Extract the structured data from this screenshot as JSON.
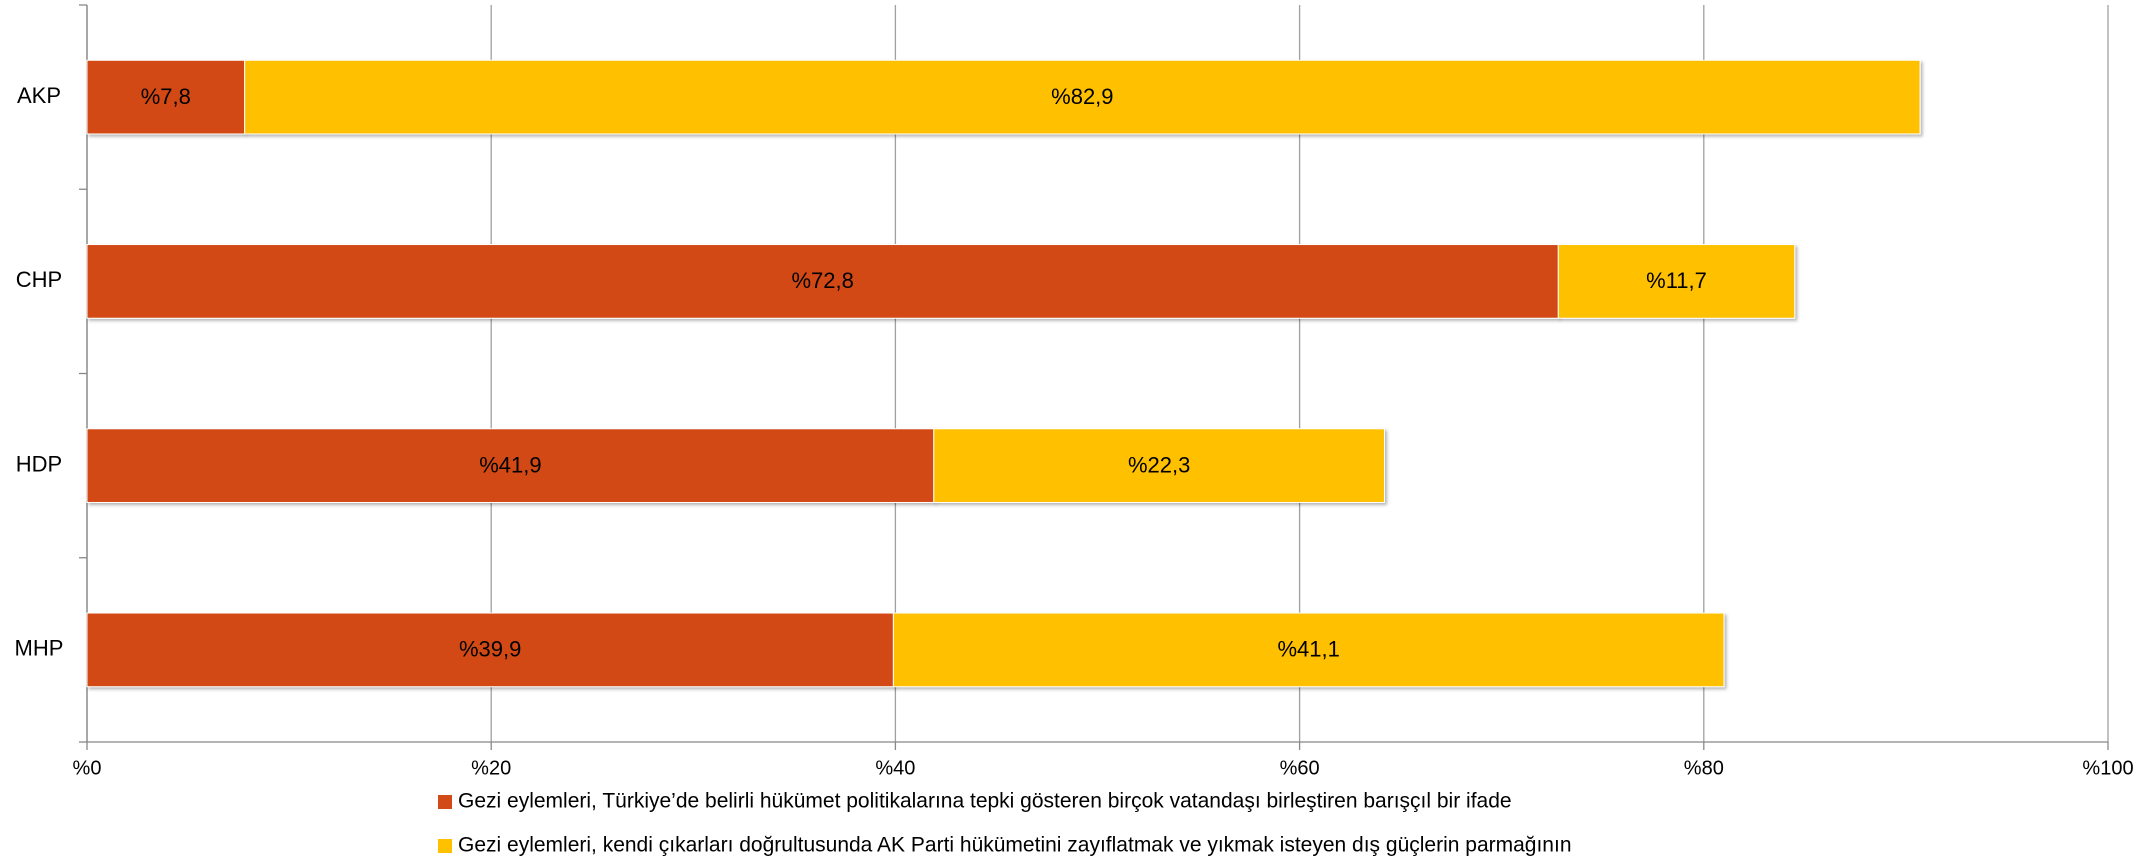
{
  "chart_data": {
    "type": "bar",
    "orientation": "horizontal",
    "stacked": true,
    "categories": [
      "AKP",
      "CHP",
      "HDP",
      "MHP"
    ],
    "series": [
      {
        "name": "Gezi eylemleri, Türkiye’de belirli hükümet politikalarına tepki gösteren birçok vatandaşı birleştiren barışçıl bir ifade",
        "color": "#d24a17",
        "values": [
          7.8,
          72.8,
          41.9,
          39.9
        ],
        "value_labels": [
          "%7,8",
          "%72,8",
          "%41,9",
          "%39,9"
        ]
      },
      {
        "name": "Gezi eylemleri, kendi çıkarları doğrultusunda AK Parti hükümetini zayıflatmak ve yıkmak isteyen dış güçlerin parmağının",
        "color": "#ffc000",
        "values": [
          82.9,
          11.7,
          22.3,
          41.1
        ],
        "value_labels": [
          "%82,9",
          "%11,7",
          "%22,3",
          "%41,1"
        ]
      }
    ],
    "xlim": [
      0,
      100
    ],
    "xticks": [
      {
        "value": 0,
        "label": "%0"
      },
      {
        "value": 20,
        "label": "%20"
      },
      {
        "value": 40,
        "label": "%40"
      },
      {
        "value": 60,
        "label": "%60"
      },
      {
        "value": 80,
        "label": "%80"
      },
      {
        "value": 100,
        "label": "%100"
      }
    ],
    "grid": true
  }
}
